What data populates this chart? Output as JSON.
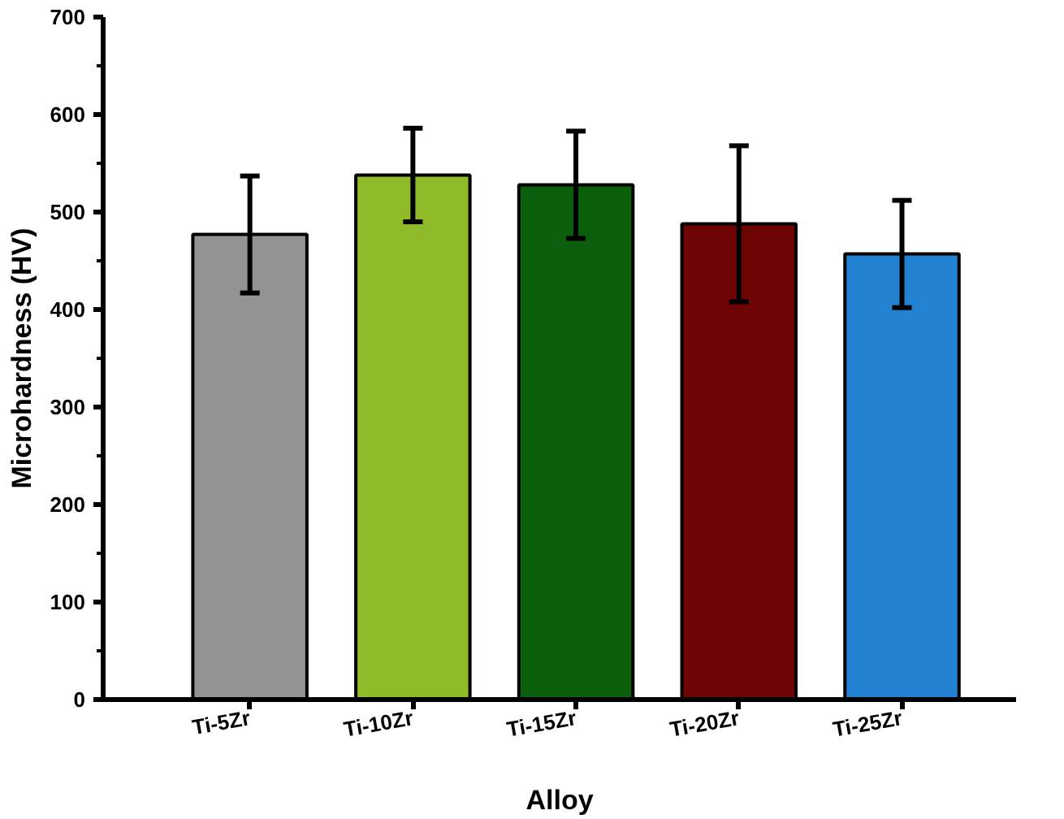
{
  "chart_data": {
    "type": "bar",
    "xlabel": "Alloy",
    "ylabel": "Microhardness (HV)",
    "categories": [
      "Ti-5Zr",
      "Ti-10Zr",
      "Ti-15Zr",
      "Ti-20Zr",
      "Ti-25Zr"
    ],
    "values": [
      477,
      538,
      528,
      488,
      457
    ],
    "errors": [
      60,
      48,
      55,
      80,
      55
    ],
    "colors": [
      "#939393",
      "#8fba2a",
      "#0b5e0b",
      "#6e0404",
      "#2381d2"
    ],
    "ylim": [
      0,
      700
    ],
    "yticks": [
      0,
      100,
      200,
      300,
      400,
      500,
      600,
      700
    ],
    "grid": false
  }
}
